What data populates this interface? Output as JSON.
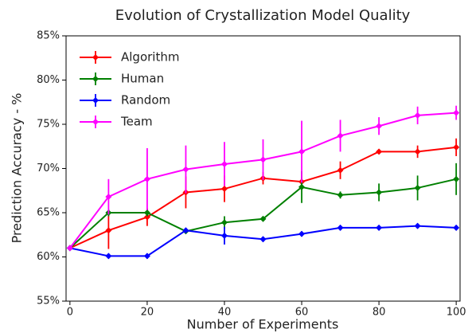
{
  "chart_data": {
    "type": "line",
    "title": "Evolution of Crystallization Model Quality",
    "xlabel": "Number of Experiments",
    "ylabel": "Prediction Accuracy - %",
    "x": [
      0,
      10,
      20,
      30,
      40,
      50,
      60,
      70,
      80,
      90,
      100
    ],
    "series": [
      {
        "name": "Algorithm",
        "color": "#ff0000",
        "values": [
          61.0,
          63.0,
          64.5,
          67.3,
          67.7,
          68.9,
          68.5,
          69.8,
          71.9,
          71.9,
          72.4
        ],
        "errors": [
          0,
          2.1,
          1.0,
          1.8,
          1.5,
          0.7,
          0.5,
          1.0,
          0.2,
          0.7,
          1.0
        ]
      },
      {
        "name": "Human",
        "color": "#008000",
        "values": [
          61.0,
          65.0,
          65.0,
          62.9,
          63.9,
          64.3,
          67.9,
          67.0,
          67.3,
          67.8,
          68.8
        ],
        "errors": [
          0,
          0.4,
          0.4,
          0.2,
          0.7,
          0.2,
          1.8,
          0.4,
          1.0,
          1.4,
          1.8
        ]
      },
      {
        "name": "Random",
        "color": "#0000ff",
        "values": [
          61.0,
          60.1,
          60.1,
          63.0,
          62.4,
          62.0,
          62.6,
          63.3,
          63.3,
          63.5,
          63.3
        ],
        "errors": [
          0,
          0.3,
          0.3,
          0.3,
          1.0,
          0.3,
          0.3,
          0.3,
          0.3,
          0.3,
          0.3
        ]
      },
      {
        "name": "Team",
        "color": "#ff00ff",
        "values": [
          61.0,
          66.8,
          68.8,
          69.9,
          70.5,
          71.0,
          71.9,
          73.7,
          74.8,
          76.0,
          76.3
        ],
        "errors": [
          0,
          2.0,
          3.5,
          2.7,
          2.5,
          2.3,
          3.5,
          1.8,
          1.0,
          1.0,
          0.8
        ]
      }
    ],
    "xlim": [
      -1,
      101
    ],
    "xticks": [
      0,
      20,
      40,
      60,
      80,
      100
    ],
    "ylim": [
      55,
      85
    ],
    "yticks": [
      {
        "value": 55,
        "label": "55%"
      },
      {
        "value": 60,
        "label": "60%"
      },
      {
        "value": 65,
        "label": "65%"
      },
      {
        "value": 70,
        "label": "70%"
      },
      {
        "value": 75,
        "label": "75%"
      },
      {
        "value": 80,
        "label": "80%"
      },
      {
        "value": 85,
        "label": "85%"
      }
    ],
    "legend": "upper left",
    "grid": false
  }
}
